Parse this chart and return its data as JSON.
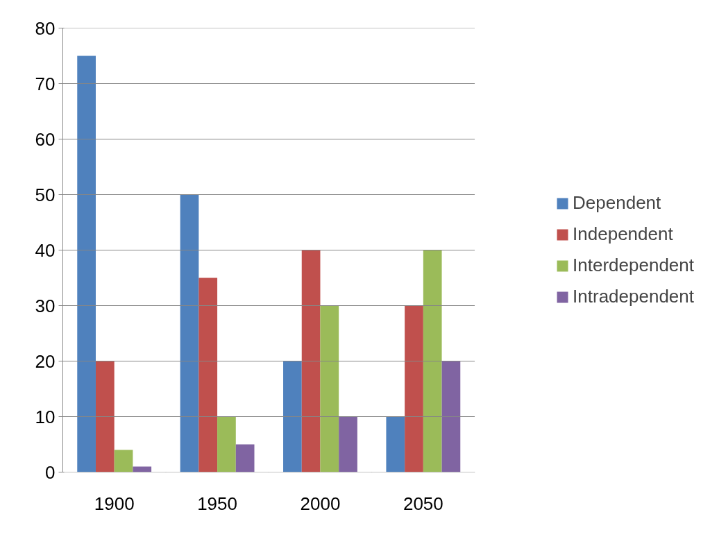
{
  "chart_data": {
    "type": "bar",
    "categories": [
      "1900",
      "1950",
      "2000",
      "2050"
    ],
    "series": [
      {
        "name": "Dependent",
        "color": "#4f81bd",
        "values": [
          75,
          50,
          20,
          10
        ]
      },
      {
        "name": "Independent",
        "color": "#c0504d",
        "values": [
          20,
          35,
          40,
          30
        ]
      },
      {
        "name": "Interdependent",
        "color": "#9bbb59",
        "values": [
          4,
          10,
          30,
          40
        ]
      },
      {
        "name": "Intradependent",
        "color": "#8064a2",
        "values": [
          1,
          5,
          10,
          20
        ]
      }
    ],
    "ylim": [
      0,
      80
    ],
    "yticks": [
      0,
      10,
      20,
      30,
      40,
      50,
      60,
      70,
      80
    ],
    "grid": "y",
    "legend": "right"
  }
}
